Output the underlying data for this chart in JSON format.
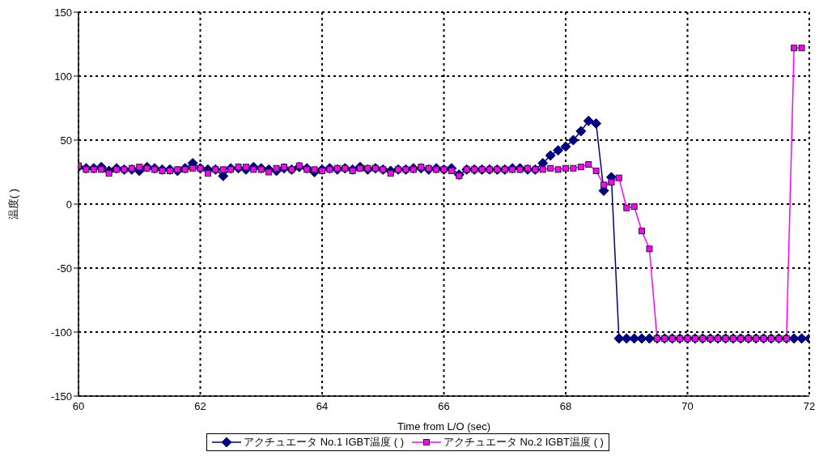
{
  "chart_data": {
    "type": "line",
    "xlabel": "Time from L/O (sec)",
    "ylabel": "温度(   )",
    "x": [
      60,
      60.125,
      60.25,
      60.375,
      60.5,
      60.625,
      60.75,
      60.875,
      61,
      61.125,
      61.25,
      61.375,
      61.5,
      61.625,
      61.75,
      61.875,
      62,
      62.125,
      62.25,
      62.375,
      62.5,
      62.625,
      62.75,
      62.875,
      63,
      63.125,
      63.25,
      63.375,
      63.5,
      63.625,
      63.75,
      63.875,
      64,
      64.125,
      64.25,
      64.375,
      64.5,
      64.625,
      64.75,
      64.875,
      65,
      65.125,
      65.25,
      65.375,
      65.5,
      65.625,
      65.75,
      65.875,
      66,
      66.125,
      66.25,
      66.375,
      66.5,
      66.625,
      66.75,
      66.875,
      67,
      67.125,
      67.25,
      67.375,
      67.5,
      67.625,
      67.75,
      67.875,
      68,
      68.125,
      68.25,
      68.375,
      68.5,
      68.625,
      68.75,
      68.875,
      69,
      69.125,
      69.25,
      69.375,
      69.5,
      69.625,
      69.75,
      69.875,
      70,
      70.125,
      70.25,
      70.375,
      70.5,
      70.625,
      70.75,
      70.875,
      71,
      71.125,
      71.25,
      71.375,
      71.5,
      71.625,
      71.75,
      71.875,
      72
    ],
    "series": [
      {
        "name": "アクチュエータ No.1 IGBT温度 (   )",
        "color": "#000080",
        "marker": "diamond",
        "values": [
          29,
          28,
          28,
          29,
          26,
          28,
          27,
          27,
          26,
          29,
          28,
          27,
          27,
          26,
          28,
          32,
          28,
          27,
          27,
          22,
          28,
          28,
          27,
          29,
          28,
          27,
          26,
          28,
          27,
          29,
          28,
          25,
          27,
          28,
          27,
          28,
          27,
          29,
          27,
          28,
          27,
          26,
          27,
          27,
          28,
          28,
          27,
          28,
          27,
          28,
          23,
          27,
          27,
          27,
          27,
          27,
          27,
          28,
          28,
          27,
          27,
          32,
          38,
          42,
          45,
          50,
          57,
          65,
          63,
          10.5,
          21,
          -105,
          -105,
          -105,
          -105,
          -105,
          -105,
          -105,
          -105,
          -105,
          -105,
          -105,
          -105,
          -105,
          -105,
          -105,
          -105,
          -105,
          -105,
          -105,
          -105,
          -105,
          -105,
          -105,
          -105,
          -105,
          -105
        ]
      },
      {
        "name": "アクチュエータ No.2 IGBT温度 (   )",
        "color": "#ff00ff",
        "marker": "square",
        "values": [
          30,
          27,
          27,
          27,
          24,
          27,
          27,
          28,
          29,
          28,
          27,
          26,
          26,
          27,
          27,
          28,
          28,
          24,
          27,
          27,
          27,
          29,
          29,
          27,
          27,
          25,
          28,
          29,
          27,
          30,
          27,
          27,
          26,
          27,
          28,
          28,
          26,
          28,
          28,
          28,
          27,
          24,
          27,
          27,
          27,
          29,
          28,
          27,
          27,
          26,
          22,
          27,
          27,
          27,
          27,
          27,
          27,
          27,
          27,
          28,
          27,
          27,
          28,
          27,
          28,
          28,
          29,
          31,
          26,
          15,
          17,
          20.5,
          -3,
          -2,
          -21,
          -35,
          -105,
          -105,
          -105,
          -105,
          -105,
          -105,
          -105,
          -105,
          -105,
          -105,
          -105,
          -105,
          -105,
          -105,
          -105,
          -105,
          -105,
          -105,
          122,
          122,
          null
        ]
      }
    ],
    "xlim": [
      60,
      72
    ],
    "xticks": [
      60,
      62,
      64,
      66,
      68,
      70,
      72
    ],
    "ylim": [
      -150,
      150
    ],
    "yticks": [
      -150,
      -100,
      -50,
      0,
      50,
      100,
      150
    ],
    "grid": true,
    "legend": "bottom",
    "line_style": "solid"
  }
}
